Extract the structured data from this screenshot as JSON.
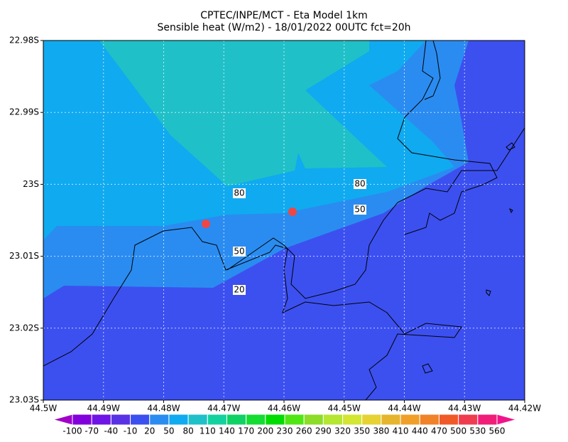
{
  "header": {
    "title": "CPTEC/INPE/MCT -  Eta Model 1km",
    "subtitle": "Sensible heat (W/m2) - 18/01/2022 00UTC fct=20h"
  },
  "x_labels": [
    "44.5W",
    "44.49W",
    "44.48W",
    "44.47W",
    "44.46W",
    "44.45W",
    "44.44W",
    "44.43W",
    "44.42W"
  ],
  "y_labels": [
    "22.98S",
    "22.99S",
    "23S",
    "23.01S",
    "23.02S",
    "23.03S"
  ],
  "contour_labels": [
    "80",
    "80",
    "50",
    "50",
    "20"
  ],
  "colorbar": {
    "levels": [
      -100,
      -70,
      -40,
      -10,
      20,
      50,
      80,
      110,
      140,
      170,
      200,
      230,
      260,
      290,
      320,
      350,
      380,
      410,
      440,
      470,
      500,
      530,
      560
    ],
    "colors": [
      "#a000c8",
      "#8200dc",
      "#6e14e6",
      "#5a32e6",
      "#3c50f0",
      "#2a8cf0",
      "#10aaf0",
      "#20c0c8",
      "#14d2a0",
      "#10d264",
      "#14dc32",
      "#00dc00",
      "#50e614",
      "#8cdc28",
      "#b4e632",
      "#d2e632",
      "#e6d232",
      "#e6b42d",
      "#f0a028",
      "#f08228",
      "#f05a28",
      "#f03c50",
      "#f01e78",
      "#f0148c"
    ]
  }
}
